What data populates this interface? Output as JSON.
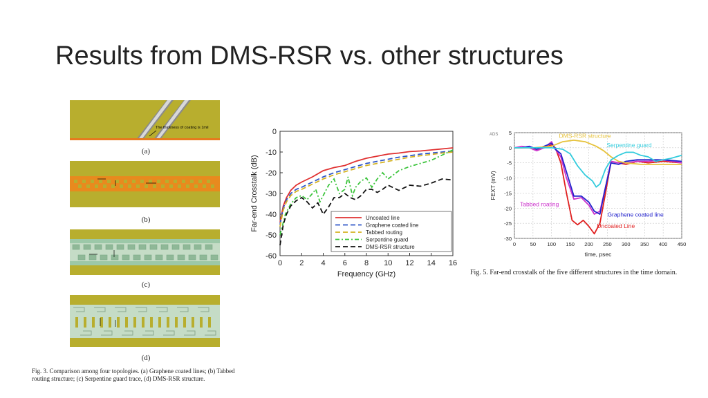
{
  "slide": {
    "title": "Results from DMS-RSR vs. other structures"
  },
  "figure3": {
    "panels": [
      {
        "label": "(a)",
        "annotation": "The thickness of coating is 1mil"
      },
      {
        "label": "(b)",
        "annotation": ""
      },
      {
        "label": "(c)",
        "annotation": ""
      },
      {
        "label": "(d)",
        "annotation": ""
      }
    ],
    "caption": "Fig. 3. Comparison among four topologies. (a) Graphene coated lines; (b) Tabbed routing structure; (c) Serpentine guard trace, (d) DMS-RSR structure."
  },
  "chart_data": [
    {
      "type": "line",
      "title": "",
      "xlabel": "Frequency (GHz)",
      "ylabel": "Far-end Crosstalk (dB)",
      "xlim": [
        0,
        16
      ],
      "ylim": [
        -60,
        0
      ],
      "xticks": [
        0,
        2,
        4,
        6,
        8,
        10,
        12,
        14,
        16
      ],
      "yticks": [
        0,
        -10,
        -20,
        -30,
        -40,
        -50,
        -60
      ],
      "grid": false,
      "legend_position": "bottom-right",
      "series": [
        {
          "name": "Uncoated line",
          "color": "#e03030",
          "dash": "solid",
          "x": [
            0,
            0.3,
            0.6,
            1,
            1.5,
            2,
            3,
            4,
            5,
            6,
            7,
            8,
            9,
            10,
            11,
            12,
            13,
            14,
            15,
            16
          ],
          "y": [
            -44,
            -36,
            -32,
            -28.5,
            -26,
            -24.5,
            -22,
            -19,
            -17.5,
            -16.5,
            -14.5,
            -13,
            -12,
            -11,
            -10.5,
            -9.8,
            -9.5,
            -9,
            -8.5,
            -8
          ]
        },
        {
          "name": "Graphene coated line",
          "color": "#2f56c8",
          "dash": "dashed",
          "x": [
            0,
            0.3,
            0.6,
            1,
            1.5,
            2,
            3,
            4,
            5,
            6,
            7,
            8,
            9,
            10,
            11,
            12,
            13,
            14,
            15,
            16
          ],
          "y": [
            -45,
            -37,
            -33,
            -30,
            -28,
            -27,
            -24.5,
            -22,
            -20,
            -18.5,
            -17,
            -15.5,
            -14.5,
            -13.5,
            -12.5,
            -11.8,
            -11,
            -10.5,
            -10,
            -9.5
          ]
        },
        {
          "name": "Tabbed routing",
          "color": "#d4b220",
          "dash": "dashed",
          "x": [
            0,
            0.3,
            0.6,
            1,
            1.5,
            2,
            3,
            4,
            5,
            6,
            7,
            8,
            9,
            10,
            11,
            12,
            13,
            14,
            15,
            16
          ],
          "y": [
            -46,
            -38,
            -34,
            -31,
            -29,
            -28,
            -25.5,
            -23,
            -21,
            -19.5,
            -18,
            -16.5,
            -15.5,
            -14.5,
            -13.5,
            -12.5,
            -11.8,
            -11.2,
            -10.5,
            -10
          ]
        },
        {
          "name": "Serpentine guard",
          "color": "#3cc43c",
          "dash": "dashdot",
          "x": [
            0,
            0.5,
            1,
            1.5,
            2,
            2.5,
            3,
            3.3,
            3.7,
            4,
            4.5,
            5,
            5.5,
            6,
            6.3,
            6.7,
            7,
            7.5,
            8,
            8.5,
            9,
            9.5,
            10,
            11,
            12,
            13,
            14,
            15,
            16
          ],
          "y": [
            -50,
            -40,
            -35,
            -32,
            -31,
            -33,
            -30,
            -28,
            -34,
            -31,
            -26,
            -23,
            -30,
            -28,
            -22,
            -31,
            -27,
            -24,
            -22.5,
            -27,
            -23,
            -20,
            -23,
            -19,
            -17,
            -15.5,
            -14,
            -11.5,
            -9
          ]
        },
        {
          "name": "DMS-RSR structure",
          "color": "#111111",
          "dash": "dashed",
          "x": [
            0,
            0.3,
            0.6,
            1,
            1.5,
            2,
            2.5,
            3,
            3.5,
            4,
            4.5,
            5,
            5.5,
            6,
            6.5,
            7,
            7.5,
            8,
            8.5,
            9,
            9.5,
            10,
            11,
            12,
            13,
            14,
            15,
            16
          ],
          "y": [
            -55,
            -45,
            -40,
            -36,
            -33.5,
            -32,
            -34,
            -37,
            -34.5,
            -40,
            -36.5,
            -32,
            -32,
            -30,
            -32,
            -33,
            -31,
            -28,
            -28,
            -29.5,
            -28,
            -26,
            -28.5,
            -26,
            -26.5,
            -25,
            -23,
            -23.5
          ]
        }
      ]
    },
    {
      "type": "line",
      "title": "",
      "corner_label": "ADS",
      "xlabel": "time, psec",
      "ylabel": "FEXT (mV)",
      "xlim": [
        0,
        450
      ],
      "ylim": [
        -30,
        5
      ],
      "xticks": [
        0,
        50,
        100,
        150,
        200,
        250,
        300,
        350,
        400,
        450
      ],
      "yticks": [
        5,
        0,
        -5,
        -10,
        -15,
        -20,
        -25,
        -30
      ],
      "grid": true,
      "series": [
        {
          "name": "Uncoated Line",
          "color": "#e02020",
          "x": [
            0,
            20,
            40,
            60,
            80,
            100,
            110,
            125,
            140,
            155,
            170,
            185,
            200,
            215,
            230,
            245,
            260,
            280,
            300,
            330,
            360,
            400,
            450
          ],
          "y": [
            0,
            0,
            0,
            -0.5,
            0,
            1,
            0,
            -5,
            -15,
            -24,
            -25.5,
            -24,
            -26,
            -28.5,
            -25,
            -15,
            -4.5,
            -5,
            -5.5,
            -4.5,
            -5,
            -4.5,
            -5
          ]
        },
        {
          "name": "Tabbed roating",
          "color": "#cc33cc",
          "x": [
            0,
            20,
            40,
            60,
            80,
            100,
            110,
            125,
            140,
            160,
            180,
            200,
            215,
            230,
            245,
            260,
            280,
            300,
            330,
            360,
            400,
            450
          ],
          "y": [
            0,
            0.5,
            0,
            -1,
            0,
            2,
            -0.5,
            -3,
            -10,
            -17,
            -16.5,
            -19,
            -22,
            -21,
            -13,
            -4.5,
            -5,
            -5,
            -4.5,
            -4.5,
            -4,
            -5
          ]
        },
        {
          "name": "Graphene coated line",
          "color": "#2222cc",
          "x": [
            0,
            20,
            40,
            60,
            80,
            100,
            110,
            125,
            140,
            160,
            180,
            200,
            215,
            230,
            245,
            260,
            280,
            300,
            330,
            360,
            400,
            450
          ],
          "y": [
            0,
            0,
            0.5,
            -0.5,
            0.5,
            1.5,
            -0.5,
            -2,
            -8,
            -16,
            -16,
            -18,
            -21,
            -22,
            -13,
            -5,
            -5.5,
            -4.5,
            -4,
            -4,
            -4,
            -4.5
          ]
        },
        {
          "name": "DMS-RSR structure",
          "color": "#e6c23a",
          "x": [
            0,
            50,
            100,
            130,
            160,
            190,
            220,
            240,
            260,
            280,
            300,
            340,
            380,
            420,
            450
          ],
          "y": [
            0,
            0,
            0.5,
            2,
            2.5,
            2,
            0.5,
            -1,
            -3,
            -4.5,
            -5,
            -5.5,
            -5.5,
            -5.5,
            -5.5
          ]
        },
        {
          "name": "Serpentine guard",
          "color": "#33ccdd",
          "x": [
            0,
            50,
            100,
            130,
            150,
            170,
            190,
            210,
            220,
            230,
            245,
            260,
            280,
            300,
            320,
            340,
            360,
            380,
            400,
            420,
            450
          ],
          "y": [
            0,
            0,
            0,
            -0.5,
            -2,
            -6,
            -9,
            -11,
            -13,
            -12,
            -7,
            -4,
            -2.5,
            -1.5,
            -1.5,
            -2.5,
            -3,
            -4.5,
            -4,
            -3.5,
            -2.5
          ]
        }
      ]
    }
  ],
  "figure5": {
    "caption": "Fig. 5. Far-end crosstalk of the five different structures in the time domain."
  }
}
